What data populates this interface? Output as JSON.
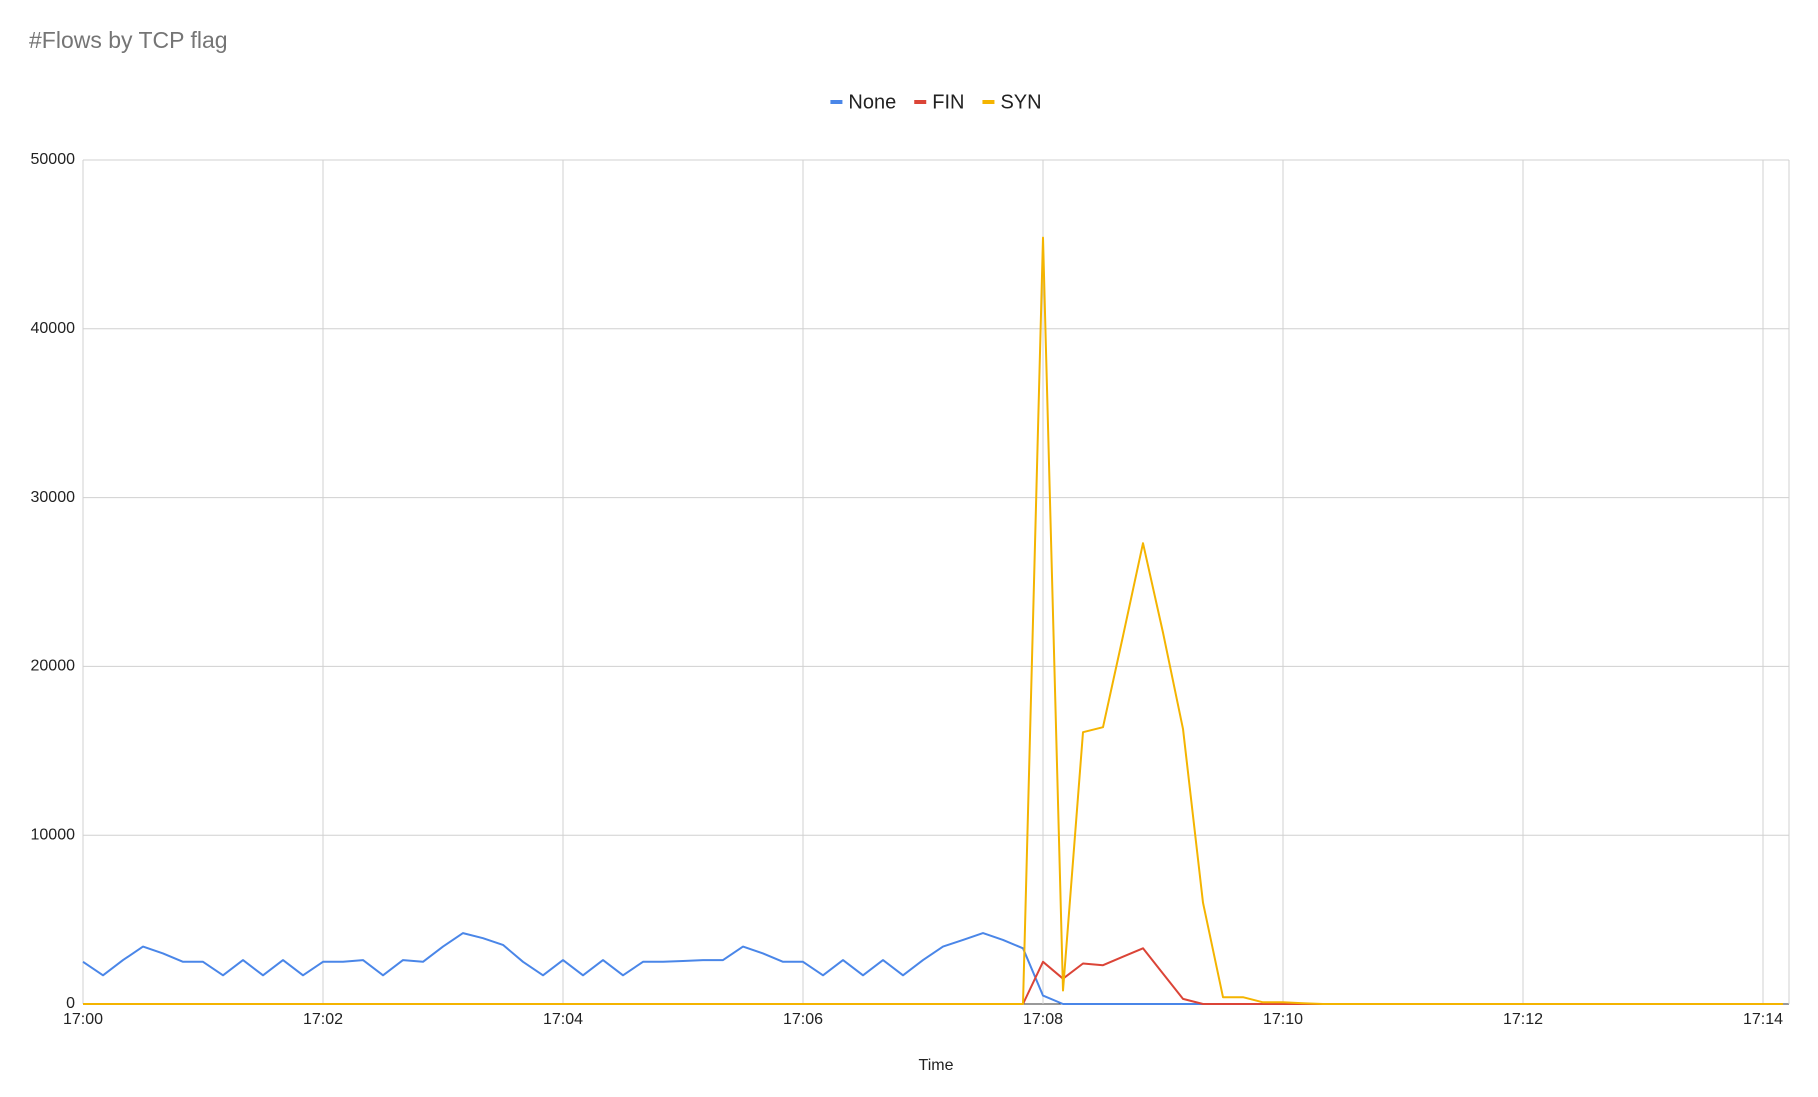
{
  "chart_data": {
    "type": "line",
    "title": "#Flows by TCP flag",
    "x_label": "Time",
    "categories": [
      "17:00",
      null,
      null,
      null,
      null,
      null,
      null,
      null,
      null,
      null,
      null,
      null,
      "17:02",
      null,
      null,
      null,
      null,
      null,
      null,
      null,
      null,
      null,
      null,
      null,
      "17:04",
      null,
      null,
      null,
      null,
      null,
      null,
      null,
      null,
      null,
      null,
      null,
      "17:06",
      null,
      null,
      null,
      null,
      null,
      null,
      null,
      null,
      null,
      null,
      null,
      "17:08",
      null,
      null,
      null,
      null,
      null,
      null,
      null,
      null,
      null,
      null,
      null,
      "17:10",
      null,
      null,
      null,
      null,
      null,
      null,
      null,
      null,
      null,
      null,
      null,
      "17:12",
      null,
      null,
      null,
      null,
      null,
      null,
      null,
      null,
      null,
      null,
      null,
      "17:14",
      null
    ],
    "series": [
      {
        "name": "None",
        "color": "#4a86e8",
        "values": [
          2500,
          1700,
          2600,
          3400,
          3000,
          2500,
          2500,
          1700,
          2600,
          1700,
          2600,
          1700,
          2500,
          2500,
          2600,
          1700,
          2600,
          2500,
          3400,
          4200,
          3900,
          3500,
          2500,
          1700,
          2600,
          1700,
          2600,
          1700,
          2500,
          2500,
          2550,
          2600,
          2600,
          3400,
          3000,
          2500,
          2500,
          1700,
          2600,
          1700,
          2600,
          1700,
          2600,
          3400,
          3800,
          4200,
          3800,
          3300,
          500,
          0,
          0,
          0,
          0,
          0,
          0,
          0,
          0,
          0,
          0,
          0,
          0,
          0,
          0,
          0,
          0,
          0,
          0,
          0,
          0,
          0,
          0,
          0,
          0,
          0,
          0,
          0,
          0,
          0,
          0,
          0,
          0,
          0,
          0,
          0,
          0,
          0
        ]
      },
      {
        "name": "FIN",
        "color": "#db4437",
        "values": [
          0,
          0,
          0,
          0,
          0,
          0,
          0,
          0,
          0,
          0,
          0,
          0,
          0,
          0,
          0,
          0,
          0,
          0,
          0,
          0,
          0,
          0,
          0,
          0,
          0,
          0,
          0,
          0,
          0,
          0,
          0,
          0,
          0,
          0,
          0,
          0,
          0,
          0,
          0,
          0,
          0,
          0,
          0,
          0,
          0,
          0,
          0,
          0,
          2500,
          1500,
          2400,
          2300,
          2800,
          3300,
          1800,
          300,
          0,
          0,
          0,
          0,
          0,
          0,
          0,
          0,
          0,
          0,
          0,
          0,
          0,
          0,
          0,
          0,
          0,
          0,
          0,
          0,
          0,
          0,
          0,
          0,
          0,
          0,
          0,
          0,
          0,
          0
        ]
      },
      {
        "name": "SYN",
        "color": "#f4b400",
        "values": [
          0,
          0,
          0,
          0,
          0,
          0,
          0,
          0,
          0,
          0,
          0,
          0,
          0,
          0,
          0,
          0,
          0,
          0,
          0,
          0,
          0,
          0,
          0,
          0,
          0,
          0,
          0,
          0,
          0,
          0,
          0,
          0,
          0,
          0,
          0,
          0,
          0,
          0,
          0,
          0,
          0,
          0,
          0,
          0,
          0,
          0,
          0,
          0,
          45400,
          800,
          16100,
          16400,
          21800,
          27300,
          22000,
          16300,
          6000,
          400,
          400,
          100,
          100,
          50,
          0,
          0,
          0,
          0,
          0,
          0,
          0,
          0,
          0,
          0,
          0,
          0,
          0,
          0,
          0,
          0,
          0,
          0,
          0,
          0,
          0,
          0,
          0,
          0
        ]
      }
    ],
    "ylim": [
      0,
      50000
    ],
    "yticks": [
      0,
      10000,
      20000,
      30000,
      40000,
      50000
    ],
    "grid": true,
    "legend": "top"
  }
}
